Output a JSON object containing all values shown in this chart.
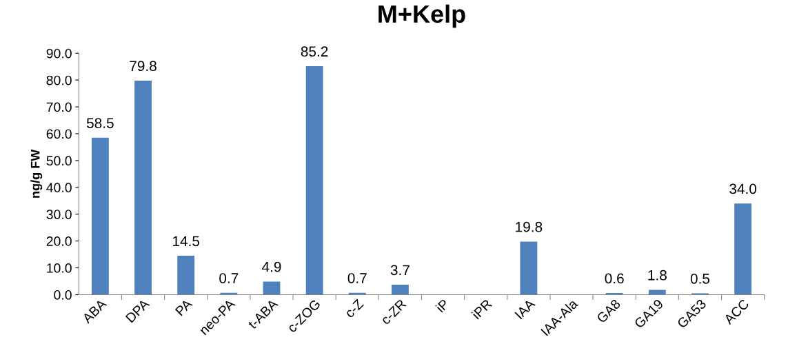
{
  "chart_data": {
    "type": "bar",
    "title": "M+Kelp",
    "ylabel": "ng/g FW",
    "categories": [
      "ABA",
      "DPA",
      "PA",
      "neo-PA",
      "t-ABA",
      "c-ZOG",
      "c-Z",
      "c-ZR",
      "iP",
      "iPR",
      "IAA",
      "IAA-Ala",
      "GA8",
      "GA19",
      "GA53",
      "ACC"
    ],
    "values": [
      58.5,
      79.8,
      14.5,
      0.7,
      4.9,
      85.2,
      0.7,
      3.7,
      null,
      null,
      19.8,
      null,
      0.6,
      1.8,
      0.5,
      34.0
    ],
    "value_labels": [
      "58.5",
      "79.8",
      "14.5",
      "0.7",
      "4.9",
      "85.2",
      "0.7",
      "3.7",
      null,
      null,
      "19.8",
      null,
      "0.6",
      "1.8",
      "0.5",
      "34.0"
    ],
    "color": "#4f81bd",
    "ylim": [
      0,
      90
    ],
    "yticks": [
      {
        "value": 0,
        "label": "0.0"
      },
      {
        "value": 10,
        "label": "10.0"
      },
      {
        "value": 20,
        "label": "20.0"
      },
      {
        "value": 30,
        "label": "30.0"
      },
      {
        "value": 40,
        "label": "40.0"
      },
      {
        "value": 50,
        "label": "50.0"
      },
      {
        "value": 60,
        "label": "60.0"
      },
      {
        "value": 70,
        "label": "70.0"
      },
      {
        "value": 80,
        "label": "80.0"
      },
      {
        "value": 90,
        "label": "90.0"
      }
    ],
    "grid": false,
    "legend": false
  }
}
